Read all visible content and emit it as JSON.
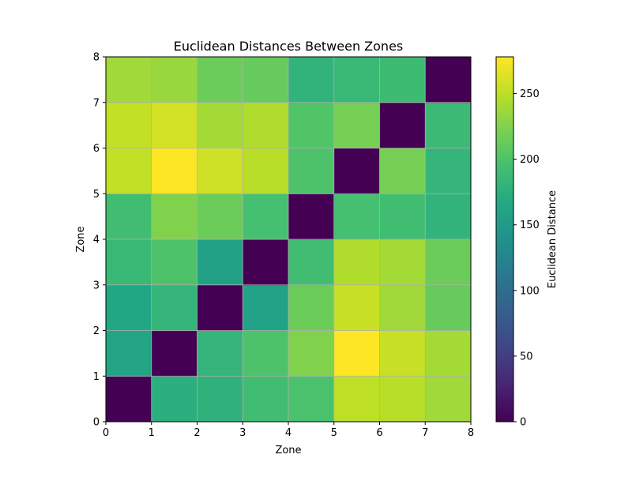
{
  "chart_data": {
    "type": "heatmap",
    "title": "Euclidean Distances Between Zones",
    "xlabel": "Zone",
    "ylabel": "Zone",
    "xlim": [
      0,
      8
    ],
    "ylim": [
      0,
      8
    ],
    "xticks": [
      "0",
      "1",
      "2",
      "3",
      "4",
      "5",
      "6",
      "7",
      "8"
    ],
    "yticks": [
      "0",
      "1",
      "2",
      "3",
      "4",
      "5",
      "6",
      "7",
      "8"
    ],
    "grid": true,
    "colormap": "viridis",
    "colorbar": {
      "label": "Euclidean Distance",
      "range": [
        0,
        278
      ],
      "ticks": [
        "0",
        "50",
        "100",
        "150",
        "200",
        "250"
      ]
    },
    "matrix": [
      [
        0,
        175,
        178,
        192,
        197,
        250,
        248,
        238
      ],
      [
        162,
        0,
        182,
        200,
        225,
        278,
        255,
        240
      ],
      [
        165,
        182,
        0,
        160,
        215,
        255,
        238,
        212
      ],
      [
        186,
        200,
        158,
        0,
        192,
        245,
        240,
        215
      ],
      [
        192,
        225,
        215,
        195,
        0,
        195,
        192,
        180
      ],
      [
        252,
        278,
        258,
        248,
        200,
        0,
        220,
        182
      ],
      [
        252,
        260,
        240,
        245,
        202,
        220,
        0,
        188
      ],
      [
        238,
        235,
        215,
        212,
        180,
        186,
        190,
        0
      ]
    ]
  }
}
